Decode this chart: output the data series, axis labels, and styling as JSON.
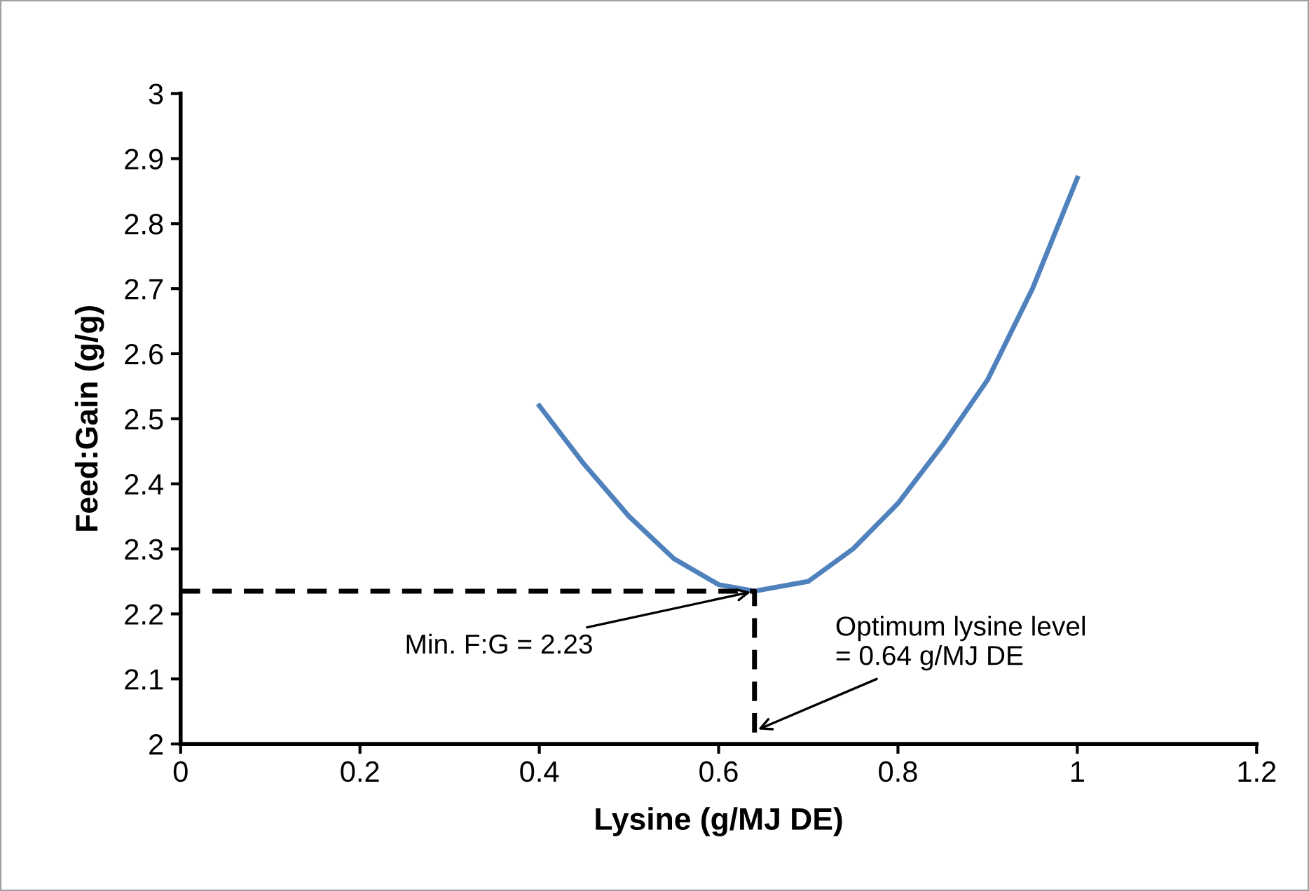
{
  "chart_data": {
    "type": "line",
    "xlabel": "Lysine (g/MJ DE)",
    "ylabel": "Feed:Gain (g/g)",
    "series": [
      {
        "color": "#4f81bd",
        "line_style": "solid",
        "x": [
          0.4,
          0.45,
          0.5,
          0.55,
          0.6,
          0.64,
          0.7,
          0.75,
          0.8,
          0.85,
          0.9,
          0.95,
          1
        ],
        "values": [
          2.52,
          2.43,
          2.35,
          2.285,
          2.245,
          2.235,
          2.25,
          2.3,
          2.37,
          2.46,
          2.56,
          2.7,
          2.87
        ]
      },
      {
        "color": "#000000",
        "line_style": "dashed",
        "x": [
          0,
          0.64,
          0.64
        ],
        "values": [
          2.235,
          2.235,
          2
        ]
      }
    ],
    "annotations": [
      {
        "text": "Min. F:G = 2.23",
        "x": 0.64,
        "y": 2.235
      },
      {
        "text": "Optimum lysine level\n= 0.64 g/MJ DE",
        "x": 0.64,
        "y": 2.02
      }
    ],
    "xlim": [
      0,
      1.2
    ],
    "xticks": [
      0,
      0.2,
      0.4,
      0.6,
      0.8,
      1,
      1.2
    ],
    "ylim": [
      2,
      3
    ],
    "yticks": [
      2,
      2.1,
      2.2,
      2.3,
      2.4,
      2.5,
      2.6,
      2.7,
      2.8,
      2.9,
      3
    ],
    "grid": false,
    "legend": false,
    "marker": "none"
  }
}
